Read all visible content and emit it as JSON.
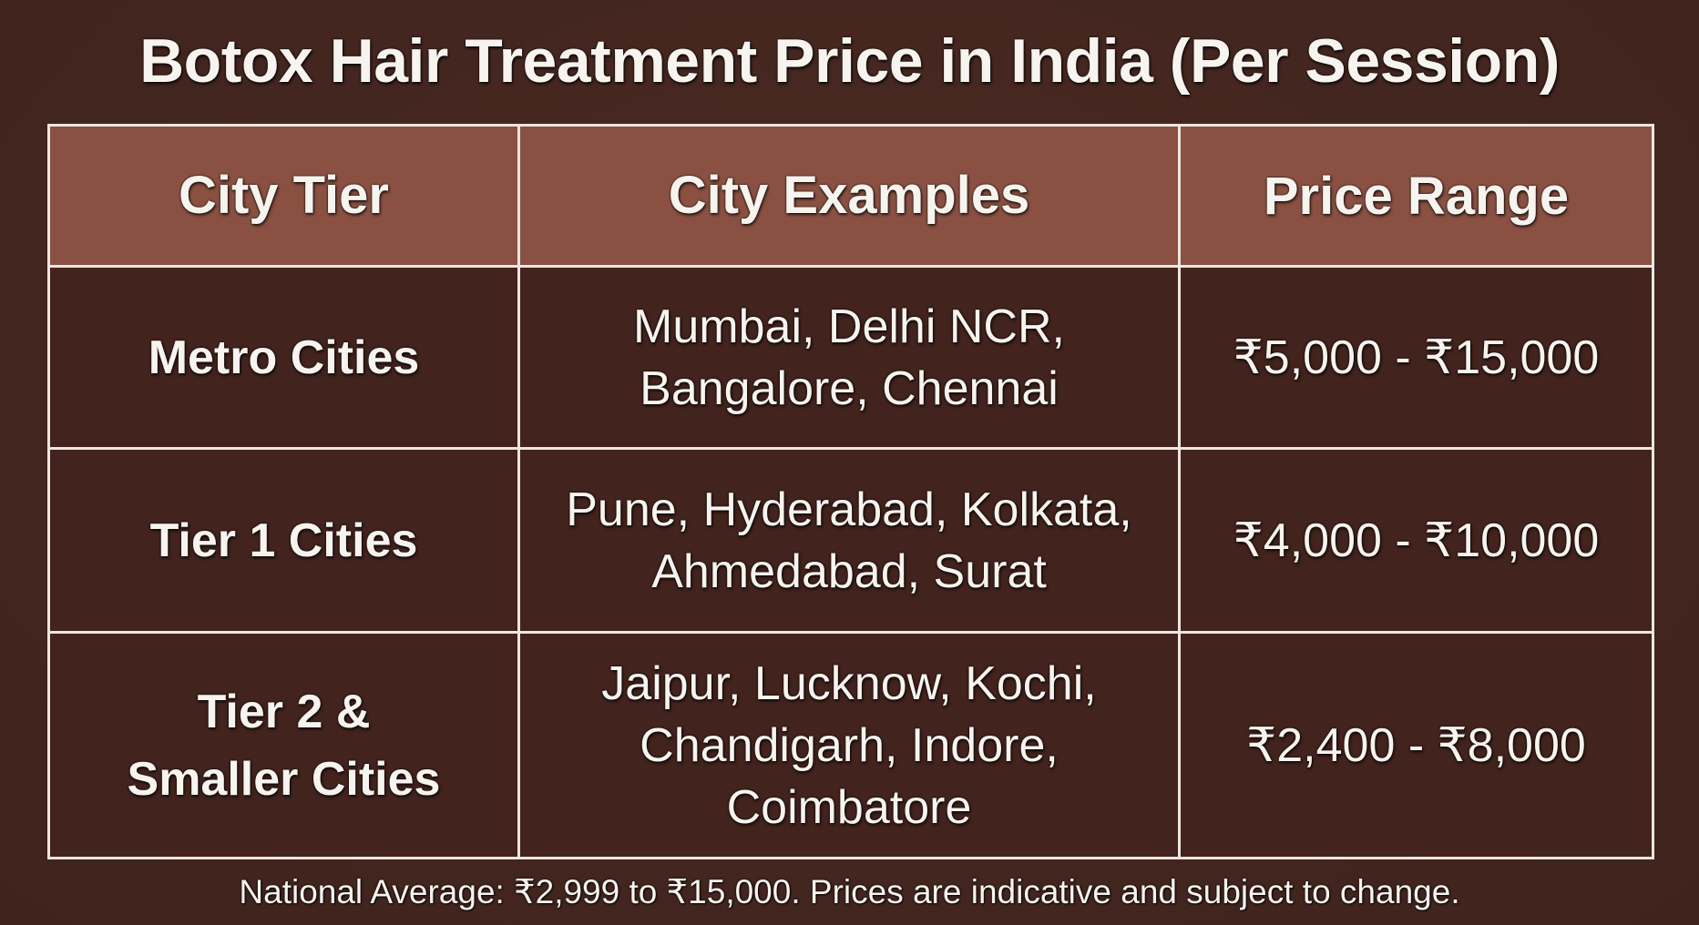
{
  "title": "Botox Hair Treatment Price in India (Per Session)",
  "table": {
    "headers": [
      "City Tier",
      "City Examples",
      "Price Range"
    ],
    "rows": [
      {
        "tier": [
          "Metro Cities"
        ],
        "cities": [
          "Mumbai, Delhi NCR,",
          "Bangalore, Chennai"
        ],
        "price": "₹5,000 - ₹15,000"
      },
      {
        "tier": [
          "Tier 1 Cities"
        ],
        "cities": [
          "Pune, Hyderabad, Kolkata,",
          "Ahmedabad, Surat"
        ],
        "price": "₹4,000 - ₹10,000"
      },
      {
        "tier": [
          "Tier 2 &",
          "Smaller Cities"
        ],
        "cities": [
          "Jaipur, Lucknow, Kochi,",
          "Chandigarh, Indore,",
          "Coimbatore"
        ],
        "price": "₹2,400 - ₹8,000"
      }
    ]
  },
  "footnote": "National Average: ₹2,999 to ₹15,000. Prices are indicative and subject to change.",
  "colors": {
    "background": "#452620",
    "header_fill": "#8a5142",
    "cell_fill": "#42231d",
    "border": "#eee6df",
    "text": "#f7f3ee"
  },
  "chart_data": {
    "type": "table",
    "title": "Botox Hair Treatment Price in India (Per Session)",
    "columns": [
      "City Tier",
      "City Examples",
      "Price Range"
    ],
    "rows": [
      [
        "Metro Cities",
        "Mumbai, Delhi NCR, Bangalore, Chennai",
        "₹5,000 - ₹15,000"
      ],
      [
        "Tier 1 Cities",
        "Pune, Hyderabad, Kolkata, Ahmedabad, Surat",
        "₹4,000 - ₹10,000"
      ],
      [
        "Tier 2 & Smaller Cities",
        "Jaipur, Lucknow, Kochi, Chandigarh, Indore, Coimbatore",
        "₹2,400 - ₹8,000"
      ]
    ],
    "price_ranges_inr": [
      {
        "tier": "Metro Cities",
        "min": 5000,
        "max": 15000
      },
      {
        "tier": "Tier 1 Cities",
        "min": 4000,
        "max": 10000
      },
      {
        "tier": "Tier 2 & Smaller Cities",
        "min": 2400,
        "max": 8000
      }
    ],
    "national_average_inr": {
      "min": 2999,
      "max": 15000
    },
    "annotation": "National Average: ₹2,999 to ₹15,000. Prices are indicative and subject to change."
  }
}
